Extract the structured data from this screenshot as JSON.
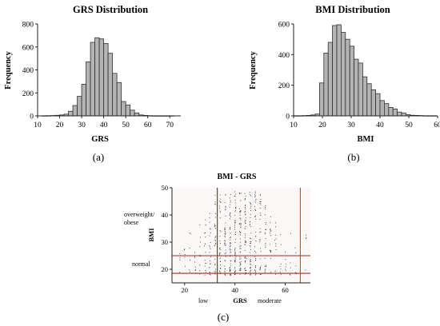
{
  "chart_data": [
    {
      "type": "bar",
      "panel": "(a)",
      "title": "GRS Distribution",
      "xlabel": "GRS",
      "ylabel": "Frequency",
      "xlim": [
        10,
        75
      ],
      "ylim": [
        0,
        800
      ],
      "xticks": [
        10,
        20,
        30,
        40,
        50,
        60,
        70
      ],
      "yticks": [
        0,
        200,
        400,
        600,
        800
      ],
      "bin_width": 2,
      "bin_starts": [
        12,
        14,
        16,
        18,
        20,
        22,
        24,
        26,
        28,
        30,
        32,
        34,
        36,
        38,
        40,
        42,
        44,
        46,
        48,
        50,
        52,
        54,
        56,
        58,
        60,
        62,
        64,
        66,
        68,
        70
      ],
      "values": [
        1,
        2,
        3,
        5,
        8,
        15,
        40,
        90,
        170,
        275,
        470,
        640,
        680,
        670,
        630,
        545,
        370,
        290,
        125,
        95,
        50,
        25,
        8,
        4,
        2,
        1,
        1,
        1,
        1,
        1
      ]
    },
    {
      "type": "bar",
      "panel": "(b)",
      "title": "BMI Distribution",
      "xlabel": "BMI",
      "ylabel": "Frequency",
      "xlim": [
        10,
        60
      ],
      "ylim": [
        0,
        600
      ],
      "xticks": [
        10,
        20,
        30,
        40,
        50,
        60
      ],
      "yticks": [
        0,
        200,
        400,
        600
      ],
      "bin_width": 1.5,
      "bin_starts": [
        10,
        11.5,
        13,
        14.5,
        16,
        17.5,
        19,
        20.5,
        22,
        23.5,
        25,
        26.5,
        28,
        29.5,
        31,
        32.5,
        34,
        35.5,
        37,
        38.5,
        40,
        41.5,
        43,
        44.5,
        46,
        47.5,
        49,
        50.5,
        52,
        53.5,
        55,
        56.5,
        58
      ],
      "values": [
        1,
        1,
        2,
        3,
        6,
        12,
        215,
        410,
        480,
        590,
        595,
        545,
        500,
        455,
        370,
        345,
        255,
        210,
        170,
        145,
        100,
        80,
        55,
        45,
        25,
        18,
        8,
        4,
        3,
        2,
        1,
        1,
        1
      ]
    },
    {
      "type": "scatter",
      "panel": "(c)",
      "title": "BMI - GRS",
      "xlabel": "GRS",
      "ylabel": "BMI",
      "xlim": [
        15,
        70
      ],
      "ylim": [
        15,
        50
      ],
      "xticks": [
        20,
        40,
        60
      ],
      "yticks": [
        20,
        30,
        40,
        50
      ],
      "points": {
        "x_min": 18,
        "x_max": 68,
        "x_step": 2,
        "y_min": 17,
        "y_max": 49
      },
      "hlines": [
        {
          "y": 25,
          "color": "#a03020"
        },
        {
          "y": 18.5,
          "color": "#a03020"
        }
      ],
      "vlines": [
        {
          "x": 33,
          "color": "#5a3a10"
        },
        {
          "x": 66,
          "color": "#a06020"
        }
      ],
      "annotations": {
        "overweight_line1": "overweight/",
        "overweight_line2": "obese",
        "normal": "normal",
        "low": "low",
        "moderate": "moderate"
      }
    }
  ],
  "labels": {
    "a": "(a)",
    "b": "(b)",
    "c": "(c)"
  }
}
